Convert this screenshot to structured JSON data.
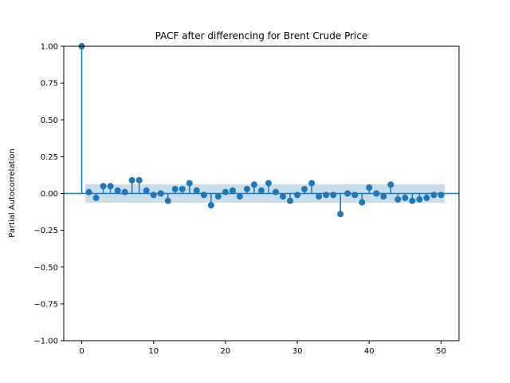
{
  "chart_data": {
    "type": "stem",
    "title": "PACF after differencing for Brent Crude Price",
    "xlabel": "",
    "ylabel": "Partial Autocorrelation",
    "xlim": [
      -2.5,
      52.5
    ],
    "ylim": [
      -1.0,
      1.0
    ],
    "xticks": [
      0,
      10,
      20,
      30,
      40,
      50
    ],
    "xtick_labels": [
      "0",
      "10",
      "20",
      "30",
      "40",
      "50"
    ],
    "yticks": [
      1.0,
      0.75,
      0.5,
      0.25,
      0.0,
      -0.25,
      -0.5,
      -0.75,
      -1.0
    ],
    "ytick_labels": [
      "1.00",
      "0.75",
      "0.50",
      "0.25",
      "0.00",
      "−0.25",
      "−0.50",
      "−0.75",
      "−1.00"
    ],
    "grid": false,
    "confidence_band": [
      -0.062,
      0.062
    ],
    "lags": [
      0,
      1,
      2,
      3,
      4,
      5,
      6,
      7,
      8,
      9,
      10,
      11,
      12,
      13,
      14,
      15,
      16,
      17,
      18,
      19,
      20,
      21,
      22,
      23,
      24,
      25,
      26,
      27,
      28,
      29,
      30,
      31,
      32,
      33,
      34,
      35,
      36,
      37,
      38,
      39,
      40,
      41,
      42,
      43,
      44,
      45,
      46,
      47,
      48,
      49,
      50
    ],
    "values": [
      1.0,
      0.01,
      -0.03,
      0.05,
      0.05,
      0.02,
      0.01,
      0.09,
      0.09,
      0.02,
      -0.01,
      0.0,
      -0.05,
      0.03,
      0.03,
      0.07,
      0.02,
      -0.01,
      -0.08,
      -0.02,
      0.01,
      0.02,
      -0.02,
      0.03,
      0.06,
      0.02,
      0.07,
      0.01,
      -0.02,
      -0.05,
      -0.01,
      0.03,
      0.07,
      -0.02,
      -0.01,
      -0.01,
      -0.14,
      0.0,
      -0.01,
      -0.06,
      0.04,
      0.0,
      -0.02,
      0.06,
      -0.04,
      -0.03,
      -0.05,
      -0.04,
      -0.03,
      -0.01,
      -0.01
    ],
    "colors": {
      "stem": "#1f77b4",
      "band": "#1f77b4",
      "axis": "#000000"
    }
  }
}
